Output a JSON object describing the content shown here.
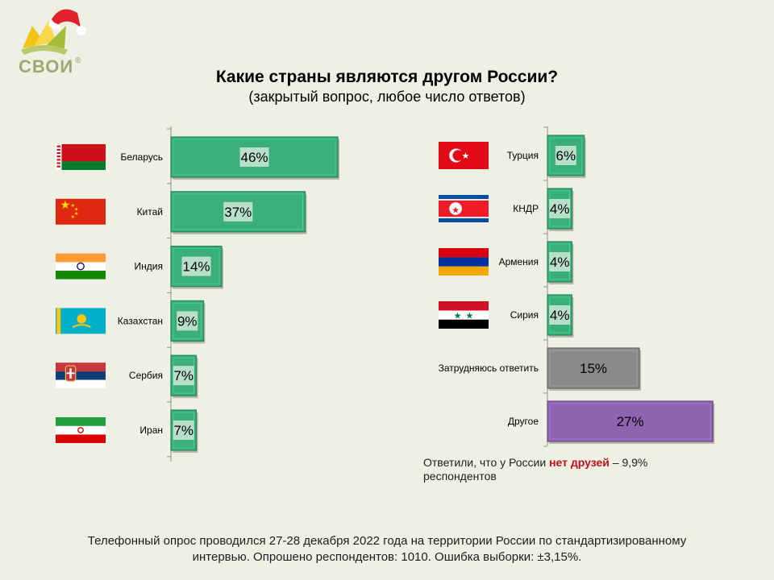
{
  "logo": {
    "text": "СВОИ",
    "reg": "®"
  },
  "chart_data": {
    "type": "bar",
    "orientation": "horizontal",
    "title": "Какие страны являются другом России?",
    "subtitle": "(закрытый вопрос, любое число ответов)",
    "unit": "%",
    "groups": [
      {
        "items": [
          {
            "label": "Беларусь",
            "value": 46,
            "value_label": "46%",
            "flag": "belarus",
            "color": "#3aaf7a"
          },
          {
            "label": "Китай",
            "value": 37,
            "value_label": "37%",
            "flag": "china",
            "color": "#3aaf7a"
          },
          {
            "label": "Индия",
            "value": 14,
            "value_label": "14%",
            "flag": "india",
            "color": "#3aaf7a"
          },
          {
            "label": "Казахстан",
            "value": 9,
            "value_label": "9%",
            "flag": "kazakhstan",
            "color": "#3aaf7a"
          },
          {
            "label": "Сербия",
            "value": 7,
            "value_label": "7%",
            "flag": "serbia",
            "color": "#3aaf7a"
          },
          {
            "label": "Иран",
            "value": 7,
            "value_label": "7%",
            "flag": "iran",
            "color": "#3aaf7a"
          }
        ]
      },
      {
        "items": [
          {
            "label": "Турция",
            "value": 6,
            "value_label": "6%",
            "flag": "turkey",
            "color": "#3aaf7a"
          },
          {
            "label": "КНДР",
            "value": 4,
            "value_label": "4%",
            "flag": "north-korea",
            "color": "#3aaf7a"
          },
          {
            "label": "Армения",
            "value": 4,
            "value_label": "4%",
            "flag": "armenia",
            "color": "#3aaf7a"
          },
          {
            "label": "Сирия",
            "value": 4,
            "value_label": "4%",
            "flag": "syria",
            "color": "#3aaf7a"
          },
          {
            "label": "Затрудняюсь ответить",
            "value": 15,
            "value_label": "15%",
            "flag": null,
            "color": "#8a8a8a"
          },
          {
            "label": "Другое",
            "value": 27,
            "value_label": "27%",
            "flag": null,
            "color": "#8e63b0"
          }
        ]
      }
    ]
  },
  "note": {
    "before": "Ответили, что у России ",
    "highlight": "нет друзей",
    "after": " – 9,9% респондентов"
  },
  "footer": {
    "line1": "Телефонный опрос проводился 27-28 декабря 2022 года на территории России по стандартизированному",
    "line2": "интервью. Опрошено респондентов: 1010. Ошибка выборки: ±3,15%."
  }
}
